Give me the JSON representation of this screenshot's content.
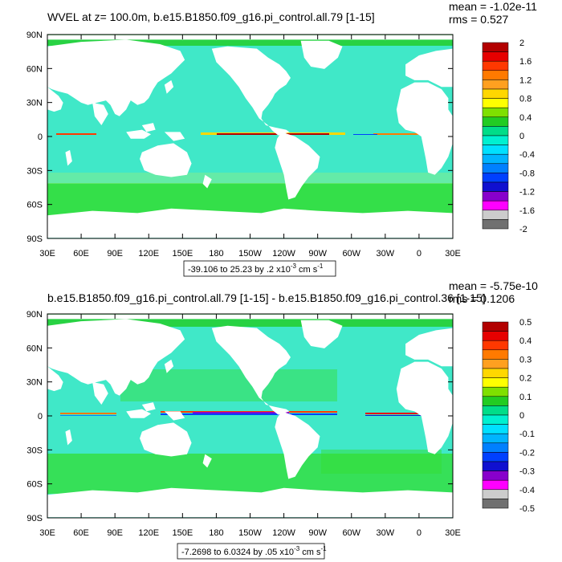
{
  "panels": [
    {
      "title": "WVEL at z= 100.0m, b.e15.B1850.f09_g16.pi_control.all.79 [1-15]",
      "stats": {
        "mean": "mean = -1.02e-11",
        "rms": "rms = 0.527"
      },
      "range_label": {
        "main": "-39.106 to 25.23 by .2 x10",
        "exp": "-3",
        "unit": " cm s",
        "unit_exp": "-1"
      },
      "colorbar_labels": [
        "2",
        "1.6",
        "1.2",
        "0.8",
        "0.4",
        "0",
        "-0.4",
        "-0.8",
        "-1.2",
        "-1.6",
        "-2"
      ]
    },
    {
      "title": "b.e15.B1850.f09_g16.pi_control.all.79 [1-15] - b.e15.B1850.f09_g16.pi_control.36 [1-15]",
      "stats": {
        "mean": "mean = -5.75e-10",
        "rms": "rms = 0.1206"
      },
      "range_label": {
        "main": "-7.2698 to 6.0324 by .05 x10",
        "exp": "-3",
        "unit": " cm s",
        "unit_exp": "-1"
      },
      "colorbar_labels": [
        "0.5",
        "0.4",
        "0.3",
        "0.2",
        "0.1",
        "0",
        "-0.1",
        "-0.2",
        "-0.3",
        "-0.4",
        "-0.5"
      ]
    }
  ],
  "lon_labels": [
    "30E",
    "60E",
    "90E",
    "120E",
    "150E",
    "180",
    "150W",
    "120W",
    "90W",
    "60W",
    "30W",
    "0",
    "30E"
  ],
  "lat_labels": [
    "90N",
    "60N",
    "30N",
    "0",
    "30S",
    "60S",
    "90S"
  ],
  "colors": {
    "palette": [
      "#B20000",
      "#E60000",
      "#FF3800",
      "#FF7A00",
      "#FFA020",
      "#FFD700",
      "#FFFF00",
      "#7FE000",
      "#22CC22",
      "#00DD88",
      "#00F0D0",
      "#00E0FF",
      "#00B4FF",
      "#0080FF",
      "#0040FF",
      "#1010D0",
      "#8800CC",
      "#FF00FF",
      "#CCCCCC",
      "#707070"
    ],
    "ocean_base": "#40E8C8",
    "land": "#FFFFFF"
  }
}
